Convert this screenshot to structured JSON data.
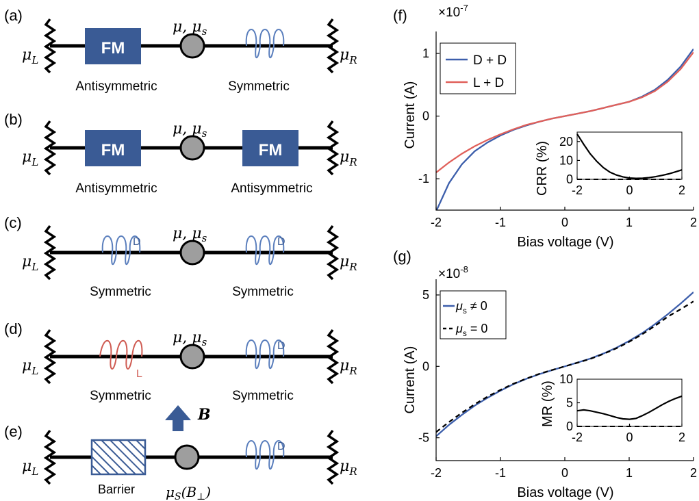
{
  "labels": {
    "mu_L": "μ",
    "sub_L": "L",
    "mu_R": "μ",
    "sub_R": "R",
    "center_mu": "μ, μ",
    "center_sub": "s",
    "fm": "FM",
    "barrier": "Barrier",
    "antisymmetric": "Antisymmetric",
    "symmetric": "Symmetric",
    "d": "D",
    "l": "L",
    "b_field": "B",
    "mus_b": "μ",
    "mus_b_sub": "S",
    "mus_b_arg": "(B",
    "mus_b_arg_sub": "⊥",
    "mus_b_close": ")"
  },
  "panels": {
    "a": {
      "tag": "(a)"
    },
    "b": {
      "tag": "(b)"
    },
    "c": {
      "tag": "(c)"
    },
    "d": {
      "tag": "(d)"
    },
    "e": {
      "tag": "(e)"
    }
  },
  "colors": {
    "fm_fill": "#3a5b95",
    "spring_d": "#5b7fbd",
    "spring_l": "#cf5b52",
    "dot_fill": "#9e9e9e",
    "series_blue": "#3c5eab",
    "series_red": "#e0605a"
  },
  "chart_data": [
    {
      "panel": "(f)",
      "type": "line",
      "exponent_base": "×10",
      "exponent": "-7",
      "xlabel": "Bias voltage (V)",
      "ylabel": "Current (A)",
      "xlim": [
        -2,
        2
      ],
      "ylim": [
        -1.5,
        1.35
      ],
      "xticks": [
        -2,
        -1,
        0,
        1,
        2
      ],
      "yticks": [
        -1,
        0,
        1
      ],
      "ytick_labels": [
        "-1",
        "0",
        "1"
      ],
      "legend_position": "top-left",
      "series": [
        {
          "name": "D + D",
          "color": "#3c5eab",
          "x": [
            -2,
            -1.8,
            -1.6,
            -1.4,
            -1.2,
            -1,
            -0.8,
            -0.6,
            -0.4,
            -0.2,
            0,
            0.2,
            0.4,
            0.6,
            0.8,
            1,
            1.2,
            1.4,
            1.6,
            1.8,
            2
          ],
          "y": [
            -1.52,
            -1.07,
            -0.77,
            -0.56,
            -0.42,
            -0.31,
            -0.22,
            -0.15,
            -0.09,
            -0.04,
            0.0,
            0.04,
            0.08,
            0.13,
            0.18,
            0.23,
            0.31,
            0.42,
            0.58,
            0.79,
            1.07
          ]
        },
        {
          "name": "L + D",
          "color": "#e0605a",
          "x": [
            -2,
            -1.8,
            -1.6,
            -1.4,
            -1.2,
            -1,
            -0.8,
            -0.6,
            -0.4,
            -0.2,
            0,
            0.2,
            0.4,
            0.6,
            0.8,
            1,
            1.2,
            1.4,
            1.6,
            1.8,
            2
          ],
          "y": [
            -0.9,
            -0.74,
            -0.6,
            -0.48,
            -0.38,
            -0.29,
            -0.21,
            -0.14,
            -0.09,
            -0.04,
            0.0,
            0.04,
            0.08,
            0.13,
            0.18,
            0.23,
            0.3,
            0.4,
            0.55,
            0.75,
            1.02
          ]
        }
      ],
      "inset": {
        "xlabel": "",
        "ylabel": "CRR (%)",
        "xlim": [
          -2,
          2
        ],
        "ylim": [
          0,
          25
        ],
        "xticks": [
          -2,
          0,
          2
        ],
        "yticks": [
          0,
          10,
          20
        ],
        "x": [
          -2,
          -1.75,
          -1.5,
          -1.25,
          -1,
          -0.75,
          -0.5,
          -0.25,
          0,
          0.25,
          0.5,
          0.75,
          1,
          1.25,
          1.5,
          1.75,
          2
        ],
        "y": [
          24,
          18.5,
          13.5,
          9.5,
          6.2,
          3.8,
          2.3,
          1.3,
          0.7,
          0.5,
          0.6,
          0.9,
          1.4,
          2.1,
          2.9,
          3.9,
          5.0
        ],
        "baseline": 0
      }
    },
    {
      "panel": "(g)",
      "type": "line",
      "exponent_base": "×10",
      "exponent": "-8",
      "xlabel": "Bias voltage (V)",
      "ylabel": "Current (A)",
      "xlim": [
        -2,
        2
      ],
      "ylim": [
        -6.6,
        6.1
      ],
      "xticks": [
        -2,
        -1,
        0,
        1,
        2
      ],
      "yticks": [
        -5,
        0,
        5
      ],
      "ytick_labels": [
        "-5",
        "0",
        "5"
      ],
      "legend_position": "top-left",
      "legend": [
        {
          "sym": "μ",
          "sub": "s",
          "rel": " ≠ 0"
        },
        {
          "sym": "μ",
          "sub": "s",
          "rel": " = 0"
        }
      ],
      "series": [
        {
          "color": "#3c5eab",
          "dash": "solid",
          "x": [
            -2,
            -1.8,
            -1.6,
            -1.4,
            -1.2,
            -1,
            -0.8,
            -0.6,
            -0.4,
            -0.2,
            0,
            0.2,
            0.4,
            0.6,
            0.8,
            1,
            1.2,
            1.4,
            1.6,
            1.8,
            2
          ],
          "y": [
            -4.9,
            -4.1,
            -3.4,
            -2.75,
            -2.2,
            -1.7,
            -1.25,
            -0.88,
            -0.55,
            -0.27,
            0.0,
            0.27,
            0.55,
            0.9,
            1.3,
            1.78,
            2.32,
            2.95,
            3.65,
            4.4,
            5.2
          ]
        },
        {
          "color": "#000000",
          "dash": "dashed",
          "x": [
            -2,
            -1.8,
            -1.6,
            -1.4,
            -1.2,
            -1,
            -0.8,
            -0.6,
            -0.4,
            -0.2,
            0,
            0.2,
            0.4,
            0.6,
            0.8,
            1,
            1.2,
            1.4,
            1.6,
            1.8,
            2
          ],
          "y": [
            -4.6,
            -3.9,
            -3.25,
            -2.65,
            -2.12,
            -1.65,
            -1.22,
            -0.86,
            -0.53,
            -0.26,
            0.0,
            0.26,
            0.53,
            0.87,
            1.26,
            1.72,
            2.24,
            2.83,
            3.48,
            4.0,
            4.55
          ]
        }
      ],
      "inset": {
        "xlabel": "",
        "ylabel": "MR  (%)",
        "xlim": [
          -2,
          2
        ],
        "ylim": [
          0,
          10
        ],
        "xticks": [
          -2,
          0,
          2
        ],
        "yticks": [
          0,
          5,
          10
        ],
        "x": [
          -2,
          -1.75,
          -1.5,
          -1.25,
          -1,
          -0.75,
          -0.5,
          -0.25,
          0,
          0.25,
          0.5,
          0.75,
          1,
          1.25,
          1.5,
          1.75,
          2
        ],
        "y": [
          3.3,
          3.5,
          3.3,
          3.0,
          2.7,
          2.3,
          1.9,
          1.6,
          1.5,
          1.7,
          2.3,
          3.0,
          3.8,
          4.6,
          5.3,
          5.9,
          6.4
        ],
        "baseline": 0
      }
    }
  ]
}
